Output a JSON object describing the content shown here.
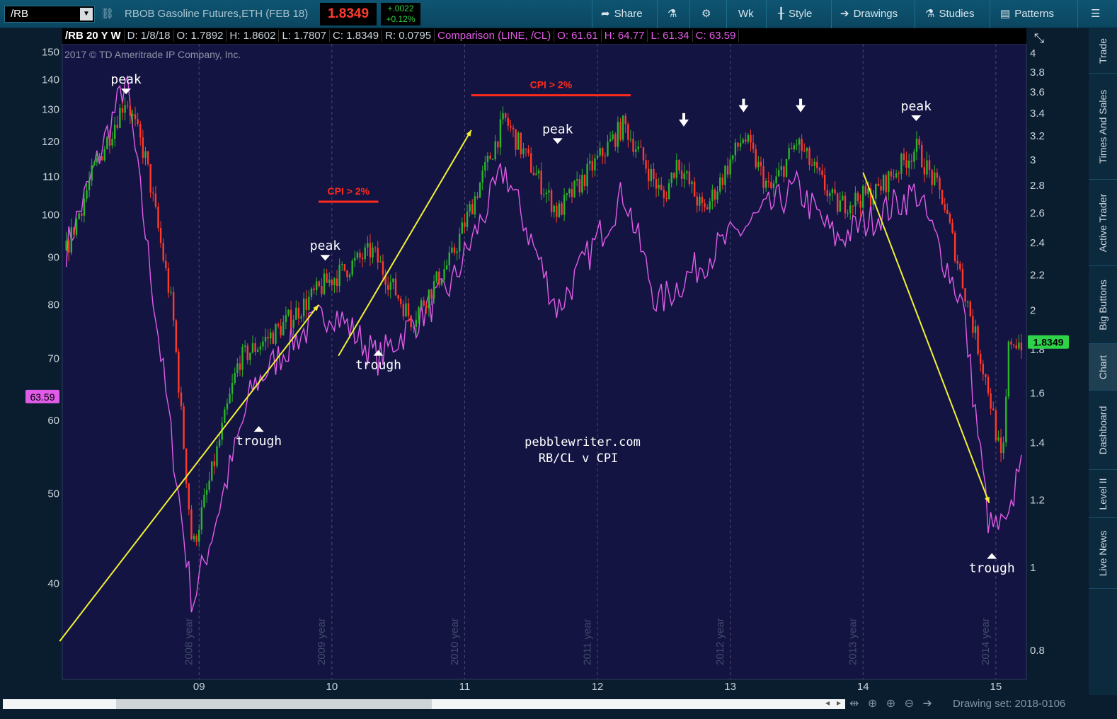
{
  "toolbar": {
    "symbol": "/RB",
    "description": "RBOB Gasoline Futures,ETH (FEB 18)",
    "last_price": "1.8349",
    "net_change": "+.0022",
    "pct_change": "+0.12%",
    "buttons": [
      {
        "label": "Share",
        "icon": "share-icon"
      },
      {
        "label": "",
        "icon": "flask-icon"
      },
      {
        "label": "",
        "icon": "gear-icon"
      },
      {
        "label": "Wk",
        "icon": ""
      },
      {
        "label": "Style",
        "icon": "candle-icon"
      },
      {
        "label": "Drawings",
        "icon": "arrow-right-icon"
      },
      {
        "label": "Studies",
        "icon": "flask-icon"
      },
      {
        "label": "Patterns",
        "icon": "pattern-icon"
      },
      {
        "label": "",
        "icon": "menu-icon"
      }
    ]
  },
  "infoline": {
    "symbol_period": "/RB 20 Y W",
    "date": "D: 1/8/18",
    "open": "O: 1.7892",
    "high": "H: 1.8602",
    "low": "L: 1.7807",
    "close": "C: 1.8349",
    "range": "R: 0.0795",
    "comparison": "Comparison (LINE, /CL)",
    "cmp_open": "O: 61.61",
    "cmp_high": "H: 64.77",
    "cmp_low": "L: 61.34",
    "cmp_close": "C: 63.59"
  },
  "colors": {
    "chart_bg": "#141443",
    "up": "#2ab52a",
    "down": "#ff3a2a",
    "comparison": "#e05ce8",
    "trend": "#f2f233",
    "annotation": "#ffffff",
    "cpi": "#ff2a1a"
  },
  "chart_data": {
    "type": "candlestick+line",
    "copyright": "2017 © TD Ameritrade IP Company, Inc.",
    "watermark_lines": [
      "pebblewriter.com",
      "RB/CL v CPI"
    ],
    "x_ticks": [
      "09",
      "10",
      "11",
      "12",
      "13",
      "14",
      "15"
    ],
    "year_labels": [
      "2008 year",
      "2009 year",
      "2010 year",
      "2011 year",
      "2012 year",
      "2013 year",
      "2014 year"
    ],
    "left_axis_ticks": [
      150,
      140,
      130,
      120,
      110,
      100,
      90,
      80,
      70,
      60,
      50,
      40
    ],
    "right_axis_ticks": [
      4,
      3.8,
      3.6,
      3.4,
      3.2,
      3,
      2.8,
      2.6,
      2.4,
      2.2,
      2,
      1.8,
      1.6,
      1.4,
      1.2,
      1,
      0.8
    ],
    "left_axis_scale": "log",
    "right_axis_scale": "log",
    "left_current_label": "63.59",
    "right_current_label": "1.8349",
    "rb_series_approx": [
      {
        "year": 2008.0,
        "value": 2.35
      },
      {
        "year": 2008.2,
        "value": 2.9
      },
      {
        "year": 2008.45,
        "value": 3.55
      },
      {
        "year": 2008.6,
        "value": 3.0
      },
      {
        "year": 2008.8,
        "value": 2.0
      },
      {
        "year": 2008.95,
        "value": 1.05
      },
      {
        "year": 2009.1,
        "value": 1.3
      },
      {
        "year": 2009.3,
        "value": 1.75
      },
      {
        "year": 2009.6,
        "value": 1.9
      },
      {
        "year": 2009.95,
        "value": 2.15
      },
      {
        "year": 2010.3,
        "value": 2.35
      },
      {
        "year": 2010.6,
        "value": 1.95
      },
      {
        "year": 2010.9,
        "value": 2.3
      },
      {
        "year": 2011.3,
        "value": 3.35
      },
      {
        "year": 2011.7,
        "value": 2.6
      },
      {
        "year": 2012.2,
        "value": 3.3
      },
      {
        "year": 2012.5,
        "value": 2.7
      },
      {
        "year": 2012.6,
        "value": 3.0
      },
      {
        "year": 2012.8,
        "value": 2.6
      },
      {
        "year": 2013.1,
        "value": 3.2
      },
      {
        "year": 2013.3,
        "value": 2.75
      },
      {
        "year": 2013.5,
        "value": 3.15
      },
      {
        "year": 2013.8,
        "value": 2.65
      },
      {
        "year": 2014.1,
        "value": 2.75
      },
      {
        "year": 2014.4,
        "value": 3.1
      },
      {
        "year": 2014.6,
        "value": 2.7
      },
      {
        "year": 2014.8,
        "value": 2.0
      },
      {
        "year": 2014.95,
        "value": 1.6
      },
      {
        "year": 2015.05,
        "value": 1.3
      },
      {
        "year": 2015.1,
        "value": 1.85
      },
      {
        "year": 2015.2,
        "value": 1.83
      }
    ],
    "cl_series_approx": [
      {
        "year": 2008.0,
        "value": 92
      },
      {
        "year": 2008.45,
        "value": 140
      },
      {
        "year": 2008.95,
        "value": 38
      },
      {
        "year": 2009.4,
        "value": 65
      },
      {
        "year": 2009.7,
        "value": 73
      },
      {
        "year": 2010.0,
        "value": 79
      },
      {
        "year": 2010.35,
        "value": 70
      },
      {
        "year": 2010.9,
        "value": 84
      },
      {
        "year": 2011.3,
        "value": 112
      },
      {
        "year": 2011.7,
        "value": 79
      },
      {
        "year": 2012.2,
        "value": 106
      },
      {
        "year": 2012.45,
        "value": 80
      },
      {
        "year": 2012.9,
        "value": 92
      },
      {
        "year": 2013.5,
        "value": 107
      },
      {
        "year": 2013.8,
        "value": 94
      },
      {
        "year": 2014.4,
        "value": 106
      },
      {
        "year": 2014.75,
        "value": 80
      },
      {
        "year": 2014.95,
        "value": 46
      },
      {
        "year": 2015.1,
        "value": 46
      },
      {
        "year": 2015.2,
        "value": 58
      }
    ],
    "annotations": [
      {
        "text": "peak",
        "marker": "down",
        "year": 2008.45,
        "value": 3.6
      },
      {
        "text": "trough",
        "marker": "up",
        "year": 2009.45,
        "value": 1.45
      },
      {
        "text": "peak",
        "marker": "down",
        "year": 2009.95,
        "value": 2.3
      },
      {
        "text": "trough",
        "marker": "up",
        "year": 2010.35,
        "value": 1.78
      },
      {
        "text": "peak",
        "marker": "down",
        "year": 2011.7,
        "value": 3.15
      },
      {
        "text": "peak",
        "marker": "down",
        "year": 2014.4,
        "value": 3.35
      },
      {
        "text": "trough",
        "marker": "up",
        "year": 2014.97,
        "value": 1.03
      }
    ],
    "arrows": [
      {
        "year": 2012.65,
        "value": 3.3
      },
      {
        "year": 2013.1,
        "value": 3.43
      },
      {
        "year": 2013.53,
        "value": 3.43
      }
    ],
    "cpi_labels": [
      {
        "text": "CPI > 2%",
        "year_from": 2009.9,
        "year_to": 2010.35,
        "value": 2.68
      },
      {
        "text": "CPI > 2%",
        "year_from": 2011.05,
        "year_to": 2012.25,
        "value": 3.57
      }
    ],
    "trend_lines": [
      {
        "from": {
          "year": 2007.95,
          "value": 0.82
        },
        "to": {
          "year": 2009.9,
          "value": 2.03
        }
      },
      {
        "from": {
          "year": 2010.05,
          "value": 1.77
        },
        "to": {
          "year": 2011.05,
          "value": 3.25
        }
      },
      {
        "from": {
          "year": 2014.0,
          "value": 2.9
        },
        "to": {
          "year": 2014.95,
          "value": 1.19
        }
      }
    ]
  },
  "sidebar": {
    "tabs": [
      "Trade",
      "Times And Sales",
      "Active Trader",
      "Big Buttons",
      "Chart",
      "Dashboard",
      "Level II",
      "Live News"
    ],
    "active": "Chart"
  },
  "bottom": {
    "drawing_set": "Drawing set: 2018-0106"
  }
}
